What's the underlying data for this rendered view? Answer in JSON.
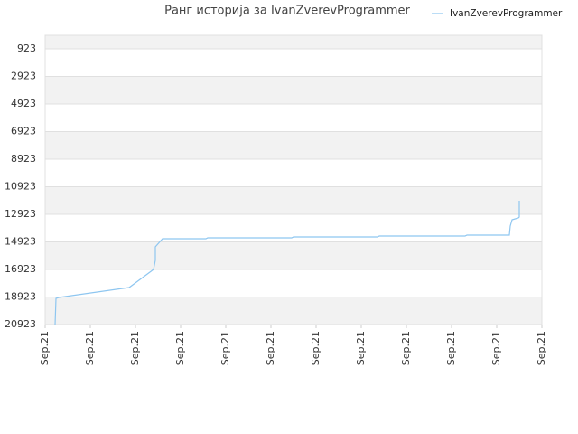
{
  "chart_data": {
    "type": "line",
    "title": "Ранг историја за IvanZverevProgrammer",
    "legend": "upper right",
    "grid": true,
    "inverted_y": true,
    "x": [
      0.22,
      0.24,
      0.3,
      1.86,
      2.4,
      2.44,
      2.44,
      2.6,
      3.56,
      3.6,
      5.46,
      5.5,
      7.36,
      7.4,
      9.3,
      9.34,
      10.28,
      10.3,
      10.34,
      10.48,
      10.5,
      10.5
    ],
    "series": [
      {
        "name": "IvanZverevProgrammer",
        "color": "#8ec6f0",
        "values": [
          20923,
          19021,
          18956,
          18234,
          16923,
          16267,
          15284,
          14693,
          14693,
          14628,
          14628,
          14562,
          14562,
          14497,
          14497,
          14431,
          14431,
          13775,
          13316,
          13185,
          13119,
          11939
        ]
      }
    ],
    "xlim": [
      0,
      11
    ],
    "xticks": [
      {
        "value": 0,
        "label": "Sep.21"
      },
      {
        "value": 1,
        "label": "Sep.21"
      },
      {
        "value": 2,
        "label": "Sep.21"
      },
      {
        "value": 3,
        "label": "Sep.21"
      },
      {
        "value": 4,
        "label": "Sep.21"
      },
      {
        "value": 5,
        "label": "Sep.21"
      },
      {
        "value": 6,
        "label": "Sep.21"
      },
      {
        "value": 7,
        "label": "Sep.21"
      },
      {
        "value": 8,
        "label": "Sep.21"
      },
      {
        "value": 9,
        "label": "Sep.21"
      },
      {
        "value": 10,
        "label": "Sep.21"
      },
      {
        "value": 11,
        "label": "Sep.21"
      }
    ],
    "ylim": [
      -61,
      20923
    ],
    "yticks": [
      923,
      2923,
      4923,
      6923,
      8923,
      10923,
      12923,
      14923,
      16923,
      18923,
      20923
    ]
  }
}
